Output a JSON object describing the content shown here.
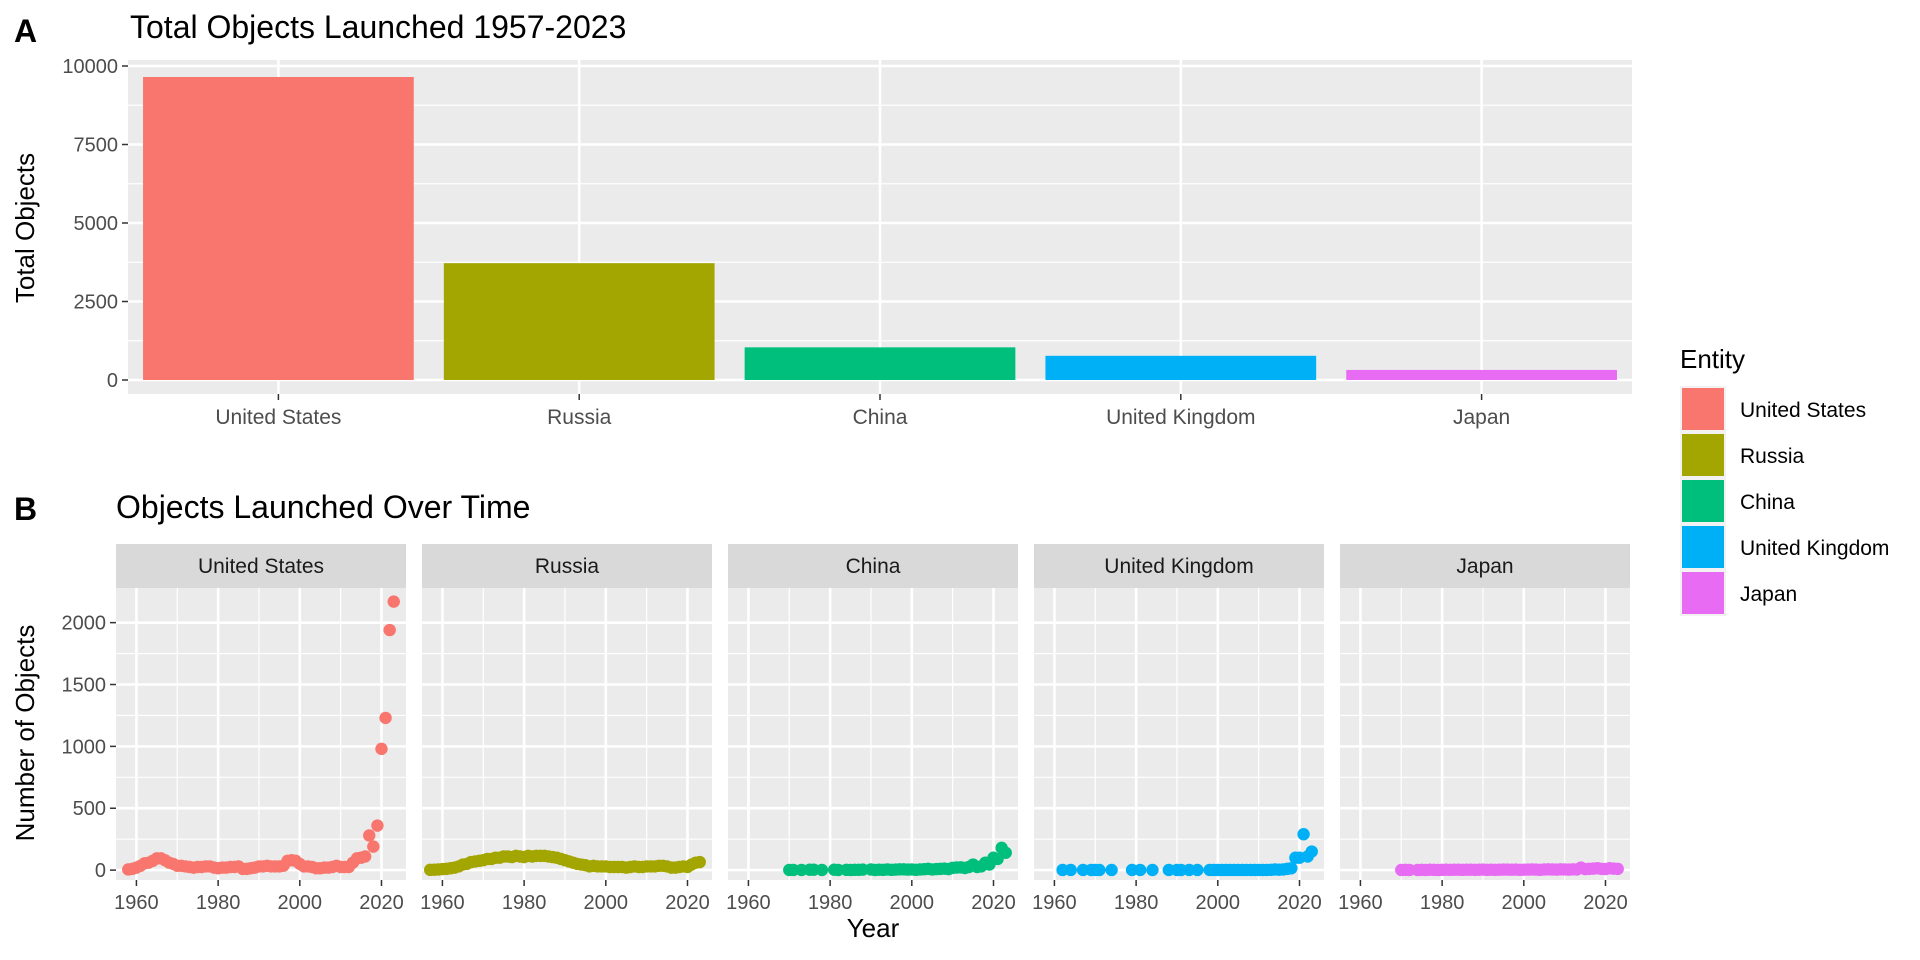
{
  "panel_labels": [
    "A",
    "B"
  ],
  "chart_data": [
    {
      "type": "bar",
      "title": "Total Objects Launched 1957-2023",
      "xlabel": "",
      "ylabel": "Total Objects",
      "categories": [
        "United States",
        "Russia",
        "China",
        "United Kingdom",
        "Japan"
      ],
      "values": [
        9650,
        3720,
        1040,
        770,
        320
      ],
      "ylim": [
        0,
        10000
      ],
      "yticks": [
        0,
        2500,
        5000,
        7500,
        10000
      ],
      "grid": true
    },
    {
      "type": "scatter",
      "title": "Objects Launched Over Time",
      "xlabel": "Year",
      "ylabel": "Number of Objects",
      "xlim": [
        1955,
        2026
      ],
      "ylim": [
        -80,
        2280
      ],
      "xticks": [
        1960,
        1980,
        2000,
        2020
      ],
      "yticks": [
        0,
        500,
        1000,
        1500,
        2000
      ],
      "grid": true,
      "facets": [
        {
          "name": "United States",
          "points": [
            [
              1958,
              5
            ],
            [
              1959,
              10
            ],
            [
              1960,
              20
            ],
            [
              1961,
              35
            ],
            [
              1962,
              55
            ],
            [
              1963,
              60
            ],
            [
              1964,
              75
            ],
            [
              1965,
              95
            ],
            [
              1966,
              95
            ],
            [
              1967,
              80
            ],
            [
              1968,
              60
            ],
            [
              1969,
              50
            ],
            [
              1970,
              35
            ],
            [
              1971,
              35
            ],
            [
              1972,
              30
            ],
            [
              1973,
              25
            ],
            [
              1974,
              20
            ],
            [
              1975,
              25
            ],
            [
              1976,
              25
            ],
            [
              1977,
              30
            ],
            [
              1978,
              30
            ],
            [
              1979,
              20
            ],
            [
              1980,
              15
            ],
            [
              1981,
              20
            ],
            [
              1982,
              20
            ],
            [
              1983,
              25
            ],
            [
              1984,
              25
            ],
            [
              1985,
              30
            ],
            [
              1986,
              10
            ],
            [
              1987,
              10
            ],
            [
              1988,
              15
            ],
            [
              1989,
              20
            ],
            [
              1990,
              30
            ],
            [
              1991,
              30
            ],
            [
              1992,
              35
            ],
            [
              1993,
              30
            ],
            [
              1994,
              30
            ],
            [
              1995,
              30
            ],
            [
              1996,
              35
            ],
            [
              1997,
              75
            ],
            [
              1998,
              80
            ],
            [
              1999,
              75
            ],
            [
              2000,
              50
            ],
            [
              2001,
              30
            ],
            [
              2002,
              30
            ],
            [
              2003,
              25
            ],
            [
              2004,
              15
            ],
            [
              2005,
              15
            ],
            [
              2006,
              20
            ],
            [
              2007,
              20
            ],
            [
              2008,
              25
            ],
            [
              2009,
              35
            ],
            [
              2010,
              25
            ],
            [
              2011,
              25
            ],
            [
              2012,
              25
            ],
            [
              2013,
              60
            ],
            [
              2014,
              95
            ],
            [
              2015,
              100
            ],
            [
              2016,
              110
            ],
            [
              2017,
              280
            ],
            [
              2018,
              190
            ],
            [
              2019,
              360
            ],
            [
              2020,
              980
            ],
            [
              2021,
              1230
            ],
            [
              2022,
              1940
            ],
            [
              2023,
              2170
            ]
          ]
        },
        {
          "name": "Russia",
          "points": [
            [
              1957,
              2
            ],
            [
              1958,
              3
            ],
            [
              1959,
              5
            ],
            [
              1960,
              8
            ],
            [
              1961,
              10
            ],
            [
              1962,
              15
            ],
            [
              1963,
              20
            ],
            [
              1964,
              30
            ],
            [
              1965,
              45
            ],
            [
              1966,
              50
            ],
            [
              1967,
              65
            ],
            [
              1968,
              70
            ],
            [
              1969,
              75
            ],
            [
              1970,
              80
            ],
            [
              1971,
              90
            ],
            [
              1972,
              90
            ],
            [
              1973,
              100
            ],
            [
              1974,
              100
            ],
            [
              1975,
              110
            ],
            [
              1976,
              110
            ],
            [
              1977,
              105
            ],
            [
              1978,
              115
            ],
            [
              1979,
              110
            ],
            [
              1980,
              105
            ],
            [
              1981,
              115
            ],
            [
              1982,
              110
            ],
            [
              1983,
              115
            ],
            [
              1984,
              115
            ],
            [
              1985,
              115
            ],
            [
              1986,
              110
            ],
            [
              1987,
              105
            ],
            [
              1988,
              100
            ],
            [
              1989,
              90
            ],
            [
              1990,
              80
            ],
            [
              1991,
              70
            ],
            [
              1992,
              60
            ],
            [
              1993,
              50
            ],
            [
              1994,
              45
            ],
            [
              1995,
              40
            ],
            [
              1996,
              30
            ],
            [
              1997,
              35
            ],
            [
              1998,
              30
            ],
            [
              1999,
              30
            ],
            [
              2000,
              30
            ],
            [
              2001,
              25
            ],
            [
              2002,
              25
            ],
            [
              2003,
              25
            ],
            [
              2004,
              25
            ],
            [
              2005,
              20
            ],
            [
              2006,
              25
            ],
            [
              2007,
              30
            ],
            [
              2008,
              25
            ],
            [
              2009,
              25
            ],
            [
              2010,
              30
            ],
            [
              2011,
              30
            ],
            [
              2012,
              30
            ],
            [
              2013,
              35
            ],
            [
              2014,
              35
            ],
            [
              2015,
              30
            ],
            [
              2016,
              20
            ],
            [
              2017,
              20
            ],
            [
              2018,
              25
            ],
            [
              2019,
              30
            ],
            [
              2020,
              25
            ],
            [
              2021,
              45
            ],
            [
              2022,
              60
            ],
            [
              2023,
              65
            ]
          ]
        },
        {
          "name": "China",
          "points": [
            [
              1970,
              1
            ],
            [
              1971,
              1
            ],
            [
              1973,
              1
            ],
            [
              1975,
              3
            ],
            [
              1976,
              3
            ],
            [
              1978,
              1
            ],
            [
              1981,
              3
            ],
            [
              1982,
              1
            ],
            [
              1984,
              2
            ],
            [
              1985,
              1
            ],
            [
              1986,
              2
            ],
            [
              1987,
              2
            ],
            [
              1988,
              4
            ],
            [
              1990,
              5
            ],
            [
              1991,
              1
            ],
            [
              1992,
              3
            ],
            [
              1993,
              2
            ],
            [
              1994,
              5
            ],
            [
              1995,
              2
            ],
            [
              1996,
              4
            ],
            [
              1997,
              6
            ],
            [
              1998,
              6
            ],
            [
              1999,
              4
            ],
            [
              2000,
              5
            ],
            [
              2001,
              2
            ],
            [
              2002,
              5
            ],
            [
              2003,
              7
            ],
            [
              2004,
              10
            ],
            [
              2005,
              5
            ],
            [
              2006,
              8
            ],
            [
              2007,
              10
            ],
            [
              2008,
              12
            ],
            [
              2009,
              8
            ],
            [
              2010,
              18
            ],
            [
              2011,
              21
            ],
            [
              2012,
              22
            ],
            [
              2013,
              17
            ],
            [
              2014,
              25
            ],
            [
              2015,
              45
            ],
            [
              2016,
              25
            ],
            [
              2017,
              30
            ],
            [
              2018,
              60
            ],
            [
              2019,
              45
            ],
            [
              2020,
              100
            ],
            [
              2021,
              90
            ],
            [
              2022,
              180
            ],
            [
              2023,
              140
            ]
          ]
        },
        {
          "name": "United Kingdom",
          "points": [
            [
              1962,
              1
            ],
            [
              1964,
              1
            ],
            [
              1967,
              1
            ],
            [
              1969,
              1
            ],
            [
              1970,
              1
            ],
            [
              1971,
              1
            ],
            [
              1974,
              1
            ],
            [
              1979,
              1
            ],
            [
              1981,
              1
            ],
            [
              1984,
              1
            ],
            [
              1988,
              1
            ],
            [
              1990,
              1
            ],
            [
              1991,
              1
            ],
            [
              1993,
              1
            ],
            [
              1995,
              1
            ],
            [
              1998,
              1
            ],
            [
              1999,
              1
            ],
            [
              2000,
              1
            ],
            [
              2001,
              1
            ],
            [
              2002,
              1
            ],
            [
              2003,
              1
            ],
            [
              2004,
              1
            ],
            [
              2005,
              1
            ],
            [
              2006,
              1
            ],
            [
              2007,
              1
            ],
            [
              2008,
              1
            ],
            [
              2009,
              1
            ],
            [
              2010,
              1
            ],
            [
              2011,
              1
            ],
            [
              2012,
              1
            ],
            [
              2013,
              2
            ],
            [
              2014,
              5
            ],
            [
              2015,
              3
            ],
            [
              2016,
              5
            ],
            [
              2017,
              10
            ],
            [
              2018,
              15
            ],
            [
              2019,
              100
            ],
            [
              2020,
              100
            ],
            [
              2021,
              290
            ],
            [
              2022,
              110
            ],
            [
              2023,
              150
            ]
          ]
        },
        {
          "name": "Japan",
          "points": [
            [
              1970,
              1
            ],
            [
              1971,
              2
            ],
            [
              1972,
              1
            ],
            [
              1974,
              1
            ],
            [
              1975,
              2
            ],
            [
              1976,
              1
            ],
            [
              1977,
              3
            ],
            [
              1978,
              2
            ],
            [
              1979,
              1
            ],
            [
              1980,
              2
            ],
            [
              1981,
              3
            ],
            [
              1982,
              2
            ],
            [
              1983,
              3
            ],
            [
              1984,
              3
            ],
            [
              1985,
              2
            ],
            [
              1986,
              3
            ],
            [
              1987,
              3
            ],
            [
              1988,
              2
            ],
            [
              1989,
              3
            ],
            [
              1990,
              4
            ],
            [
              1991,
              2
            ],
            [
              1992,
              3
            ],
            [
              1993,
              2
            ],
            [
              1994,
              3
            ],
            [
              1995,
              4
            ],
            [
              1996,
              4
            ],
            [
              1997,
              3
            ],
            [
              1998,
              4
            ],
            [
              1999,
              2
            ],
            [
              2000,
              3
            ],
            [
              2001,
              4
            ],
            [
              2002,
              5
            ],
            [
              2003,
              4
            ],
            [
              2004,
              2
            ],
            [
              2005,
              5
            ],
            [
              2006,
              6
            ],
            [
              2007,
              5
            ],
            [
              2008,
              4
            ],
            [
              2009,
              6
            ],
            [
              2010,
              5
            ],
            [
              2011,
              4
            ],
            [
              2012,
              6
            ],
            [
              2013,
              5
            ],
            [
              2014,
              20
            ],
            [
              2015,
              8
            ],
            [
              2016,
              10
            ],
            [
              2017,
              12
            ],
            [
              2018,
              15
            ],
            [
              2019,
              10
            ],
            [
              2020,
              8
            ],
            [
              2021,
              15
            ],
            [
              2022,
              12
            ],
            [
              2023,
              10
            ]
          ]
        }
      ]
    }
  ],
  "legend": {
    "title": "Entity",
    "items": [
      {
        "label": "United States",
        "color": "#F8766D"
      },
      {
        "label": "Russia",
        "color": "#A3A500"
      },
      {
        "label": "China",
        "color": "#00BF7D"
      },
      {
        "label": "United Kingdom",
        "color": "#00B0F6"
      },
      {
        "label": "Japan",
        "color": "#E76BF3"
      }
    ]
  }
}
